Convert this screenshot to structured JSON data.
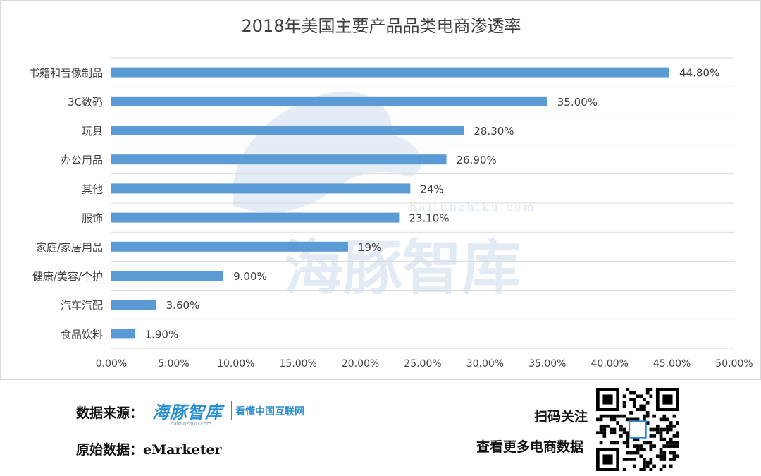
{
  "chart_data": {
    "type": "bar",
    "orientation": "horizontal",
    "title": "2018年美国主要产品品类电商渗透率",
    "categories": [
      "书籍和音像制品",
      "3C数码",
      "玩具",
      "办公用品",
      "其他",
      "服饰",
      "家庭/家居用品",
      "健康/美容/个护",
      "汽车汽配",
      "食品饮料"
    ],
    "values": [
      44.8,
      35.0,
      28.3,
      26.9,
      24,
      23.1,
      19,
      9.0,
      3.6,
      1.9
    ],
    "value_labels": [
      "44.80%",
      "35.00%",
      "28.30%",
      "26.90%",
      "24%",
      "23.10%",
      "19%",
      "9.00%",
      "3.60%",
      "1.90%"
    ],
    "xlim": [
      0,
      50
    ],
    "xticks": [
      0,
      5,
      10,
      15,
      20,
      25,
      30,
      35,
      40,
      45,
      50
    ],
    "xtick_labels": [
      "0.00%",
      "5.00%",
      "10.00%",
      "15.00%",
      "20.00%",
      "25.00%",
      "30.00%",
      "35.00%",
      "40.00%",
      "45.00%",
      "50.00%"
    ],
    "grid": true,
    "bar_color": "#5b9bd5",
    "watermark": "海豚智库",
    "watermark_domain": "haitunzhiku.com"
  },
  "footer": {
    "source_label": "数据来源：",
    "brand_logo": "海豚智库",
    "brand_domain": "haitunzhiku.com",
    "brand_slogan": "看懂中国互联网",
    "origin_label": "原始数据：",
    "origin_value": "eMarketer",
    "scan_label": "扫码关注",
    "more_label": "查看更多电商数据"
  },
  "colors": {
    "bar": "#5b9bd5",
    "grid": "#d9d9d9",
    "title": "#404040",
    "text": "#404040",
    "watermark": "#dbe7f1",
    "brand": "#2a8fd0"
  }
}
